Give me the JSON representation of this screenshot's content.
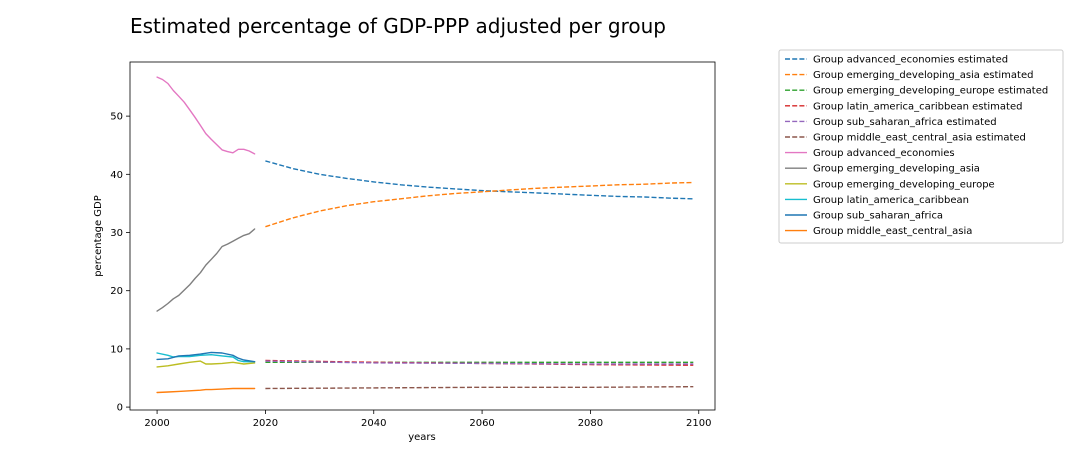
{
  "chart_data": {
    "type": "line",
    "title": "Estimated  percentage of GDP-PPP adjusted per group",
    "xlabel": "years",
    "ylabel": "percentage GDP",
    "xlim": [
      1995,
      2103
    ],
    "ylim": [
      -0.5,
      59.3
    ],
    "xticks": [
      2000,
      2020,
      2040,
      2060,
      2080,
      2100
    ],
    "yticks": [
      0,
      10,
      20,
      30,
      40,
      50
    ],
    "grid": false,
    "legend_placement": "outside-upper-right",
    "series": [
      {
        "name": "Group advanced_economies estimated",
        "color": "#1f77b4",
        "dash": true,
        "x": [
          2020,
          2025,
          2030,
          2035,
          2040,
          2045,
          2050,
          2055,
          2060,
          2065,
          2070,
          2075,
          2080,
          2085,
          2090,
          2095,
          2099
        ],
        "y": [
          42.3,
          41.0,
          40.0,
          39.3,
          38.7,
          38.2,
          37.8,
          37.5,
          37.2,
          37.0,
          36.8,
          36.6,
          36.4,
          36.2,
          36.1,
          35.9,
          35.8
        ]
      },
      {
        "name": "Group emerging_developing_asia estimated",
        "color": "#ff7f0e",
        "dash": true,
        "x": [
          2020,
          2025,
          2030,
          2035,
          2040,
          2045,
          2050,
          2055,
          2060,
          2065,
          2070,
          2075,
          2080,
          2085,
          2090,
          2095,
          2099
        ],
        "y": [
          31.0,
          32.5,
          33.7,
          34.6,
          35.3,
          35.8,
          36.3,
          36.7,
          37.0,
          37.3,
          37.6,
          37.8,
          38.0,
          38.2,
          38.3,
          38.5,
          38.6
        ]
      },
      {
        "name": "Group emerging_developing_europe estimated",
        "color": "#2ca02c",
        "dash": true,
        "x": [
          2020,
          2040,
          2060,
          2080,
          2099
        ],
        "y": [
          7.7,
          7.7,
          7.7,
          7.7,
          7.7
        ]
      },
      {
        "name": "Group latin_america_caribbean estimated",
        "color": "#d62728",
        "dash": true,
        "x": [
          2020,
          2040,
          2060,
          2080,
          2099
        ],
        "y": [
          8.0,
          7.7,
          7.5,
          7.3,
          7.2
        ]
      },
      {
        "name": "Group sub_saharan_africa estimated",
        "color": "#9467bd",
        "dash": true,
        "x": [
          2020,
          2040,
          2060,
          2080,
          2099
        ],
        "y": [
          7.9,
          7.6,
          7.5,
          7.4,
          7.4
        ]
      },
      {
        "name": "Group middle_east_central_asia estimated",
        "color": "#8c564b",
        "dash": true,
        "x": [
          2020,
          2040,
          2060,
          2080,
          2099
        ],
        "y": [
          3.2,
          3.3,
          3.4,
          3.4,
          3.5
        ]
      },
      {
        "name": "Group advanced_economies",
        "color": "#e377c2",
        "dash": false,
        "x": [
          2000,
          2001,
          2002,
          2003,
          2004,
          2005,
          2006,
          2007,
          2008,
          2009,
          2010,
          2011,
          2012,
          2013,
          2014,
          2015,
          2016,
          2017,
          2018
        ],
        "y": [
          56.7,
          56.3,
          55.6,
          54.4,
          53.4,
          52.4,
          51.1,
          49.8,
          48.4,
          47.0,
          46.0,
          45.1,
          44.2,
          43.9,
          43.7,
          44.3,
          44.3,
          44.0,
          43.5
        ]
      },
      {
        "name": "Group emerging_developing_asia",
        "color": "#7f7f7f",
        "dash": false,
        "x": [
          2000,
          2001,
          2002,
          2003,
          2004,
          2005,
          2006,
          2007,
          2008,
          2009,
          2010,
          2011,
          2012,
          2013,
          2014,
          2015,
          2016,
          2017,
          2018
        ],
        "y": [
          16.5,
          17.1,
          17.8,
          18.6,
          19.2,
          20.1,
          21.0,
          22.1,
          23.1,
          24.4,
          25.4,
          26.4,
          27.6,
          28.0,
          28.5,
          29.0,
          29.5,
          29.8,
          30.6
        ]
      },
      {
        "name": "Group emerging_developing_europe",
        "color": "#bcbd22",
        "dash": false,
        "x": [
          2000,
          2002,
          2004,
          2006,
          2008,
          2009,
          2010,
          2012,
          2014,
          2016,
          2018
        ],
        "y": [
          6.9,
          7.1,
          7.4,
          7.7,
          7.9,
          7.4,
          7.4,
          7.5,
          7.7,
          7.4,
          7.6
        ]
      },
      {
        "name": "Group latin_america_caribbean",
        "color": "#17becf",
        "dash": false,
        "x": [
          2000,
          2002,
          2003,
          2004,
          2006,
          2008,
          2010,
          2012,
          2014,
          2015,
          2016,
          2018
        ],
        "y": [
          9.3,
          8.9,
          8.6,
          8.7,
          8.7,
          8.9,
          9.0,
          8.8,
          8.6,
          8.0,
          7.8,
          7.8
        ]
      },
      {
        "name": "Group sub_saharan_africa",
        "color": "#1f77b4",
        "dash": false,
        "x": [
          2000,
          2002,
          2004,
          2006,
          2008,
          2010,
          2012,
          2014,
          2015,
          2016,
          2018
        ],
        "y": [
          8.2,
          8.3,
          8.8,
          8.9,
          9.1,
          9.4,
          9.3,
          8.9,
          8.4,
          8.1,
          7.8
        ]
      },
      {
        "name": "Group middle_east_central_asia",
        "color": "#ff7f0e",
        "dash": false,
        "x": [
          2000,
          2002,
          2004,
          2006,
          2008,
          2009,
          2010,
          2012,
          2014,
          2016,
          2018
        ],
        "y": [
          2.5,
          2.6,
          2.7,
          2.8,
          2.9,
          3.0,
          3.0,
          3.1,
          3.2,
          3.2,
          3.2
        ]
      }
    ]
  }
}
